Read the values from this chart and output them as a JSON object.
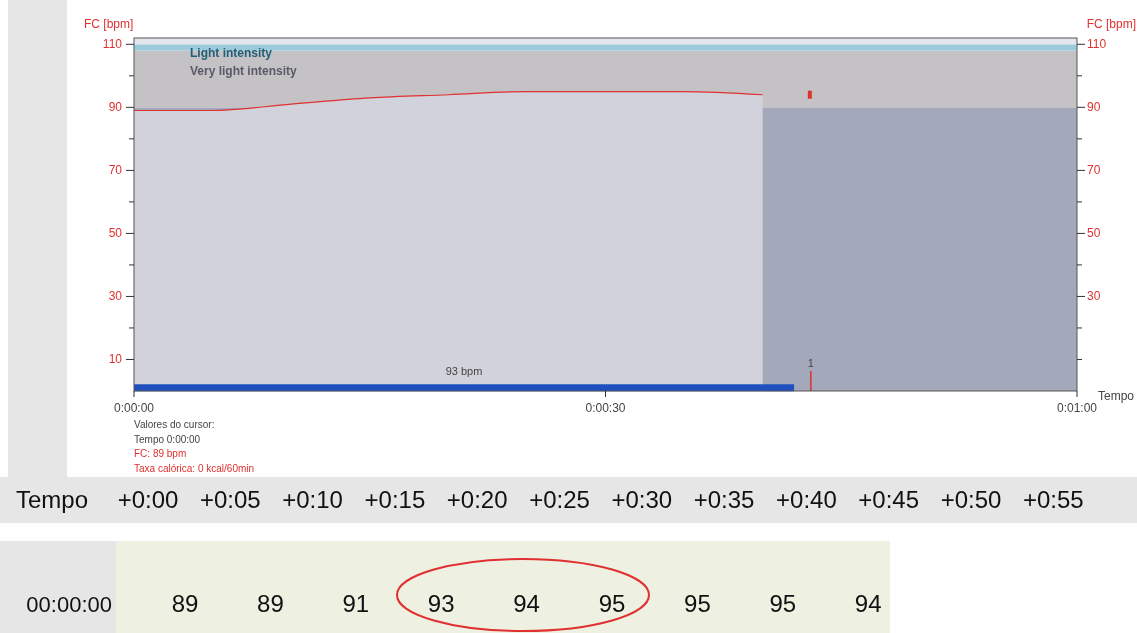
{
  "chart_data": {
    "type": "area",
    "ylabel": "FC [bpm]",
    "y2label": "FC [bpm]",
    "xlabel": "Tempo",
    "xlim": [
      0,
      60
    ],
    "xticks": [
      {
        "value": 0,
        "label": "0:00:00"
      },
      {
        "value": 30,
        "label": "0:00:30"
      },
      {
        "value": 60,
        "label": "0:01:00"
      }
    ],
    "ylim": [
      0,
      112
    ],
    "yticks": [
      10,
      {
        "value": 20,
        "label": null
      },
      30,
      {
        "value": 40,
        "label": null
      },
      50,
      {
        "value": 60,
        "label": null
      },
      70,
      {
        "value": 80,
        "label": null
      },
      90,
      {
        "value": 100,
        "label": null
      },
      110
    ],
    "y2lim": [
      0,
      112
    ],
    "y2ticks": [
      {
        "value": 10,
        "label": null
      },
      {
        "value": 20,
        "label": null
      },
      30,
      {
        "value": 40,
        "label": null
      },
      50,
      {
        "value": 60,
        "label": null
      },
      70,
      {
        "value": 80,
        "label": null
      },
      90,
      {
        "value": 100,
        "label": null
      },
      110
    ],
    "series": [
      {
        "color": "#e03030",
        "x": [
          0,
          5,
          10,
          15,
          20,
          25,
          30,
          35,
          40
        ],
        "values": [
          89,
          89,
          91,
          93,
          94,
          95,
          95,
          95,
          94
        ]
      },
      {
        "type": "line",
        "color": "#2050c0",
        "x": [
          0,
          42
        ],
        "values": [
          1,
          1
        ]
      },
      {
        "type": "scatter",
        "color": "#e03030",
        "marker": "square",
        "x": [
          43
        ],
        "values": [
          94
        ]
      }
    ],
    "bands": [
      {
        "axis": "y",
        "from": 0,
        "to": 90,
        "color": "#a3a8ba"
      },
      {
        "axis": "y",
        "from": 90,
        "to": 108,
        "label": "Very light intensity",
        "color": "#c5c2c6"
      },
      {
        "axis": "y",
        "from": 108,
        "to": 110,
        "label": "Light intensity",
        "color": "#9ccadb"
      },
      {
        "axis": "y",
        "from": 110,
        "to": 112,
        "color": "#e4e6ee"
      }
    ],
    "annotations": [
      "Valores do cursor:",
      "Tempo 0:00:00",
      "FC: 89 bpm",
      "Taxa calórica: 0 kcal/60min",
      "93 bpm",
      "1",
      "Tempo",
      "+0:00",
      "+0:05",
      "+0:10",
      "+0:15",
      "+0:20",
      "+0:25",
      "+0:30",
      "+0:35",
      "+0:40",
      "+0:45",
      "+0:50",
      "+0:55",
      "00:00:00",
      "89",
      "89",
      "91",
      "93",
      "94",
      "95",
      "95",
      "95",
      "94"
    ]
  }
}
